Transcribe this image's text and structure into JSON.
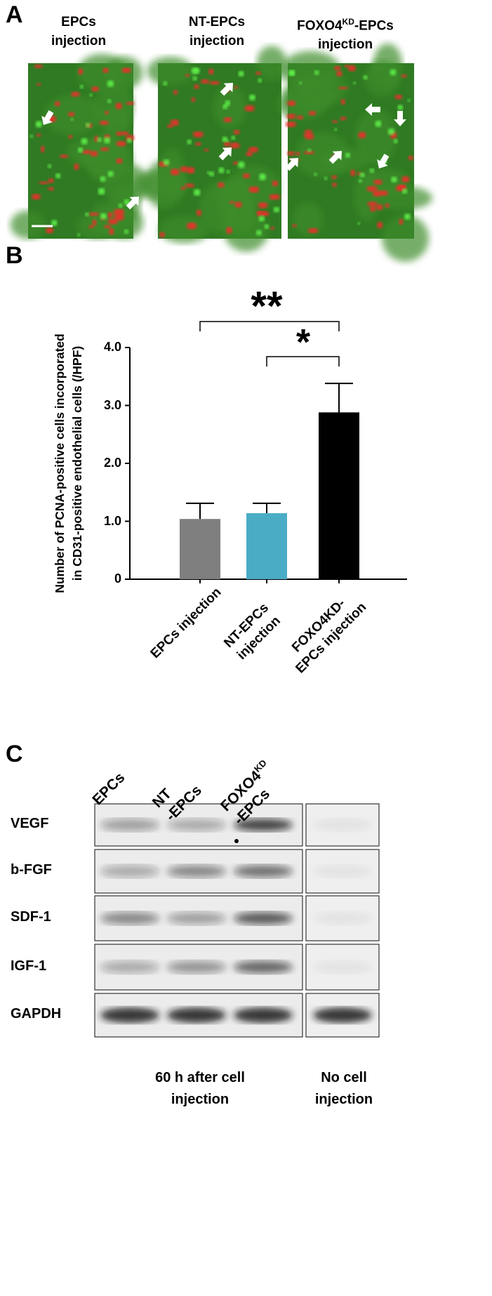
{
  "panel_a": {
    "label": "A",
    "columns": [
      {
        "name": "EPCs",
        "suffix": "injection"
      },
      {
        "name": "NT-EPCs",
        "suffix": "injection"
      },
      {
        "name": "FOXO4",
        "sup": "KD",
        "name_end": "-EPCs",
        "suffix": "injection"
      }
    ]
  },
  "chart_data": {
    "type": "bar",
    "label": "B",
    "y_label": [
      "Number of PCNA-positive cells incorporated",
      "in CD31-positive endothelial cells (/HPF)"
    ],
    "categories": [
      "EPCs injection",
      "NT-EPCs injection",
      "FOXO4KD-EPCs injection"
    ],
    "values": [
      1.04,
      1.14,
      2.88
    ],
    "errors": [
      0.27,
      0.17,
      0.5
    ],
    "colors": [
      "#7f7f7f",
      "#4bacc6",
      "#000000"
    ],
    "ylim": [
      0,
      4
    ],
    "yticks": [
      0,
      {
        "value": 1,
        "label": "1.0"
      },
      {
        "value": 2,
        "label": "2.0"
      },
      {
        "value": 3,
        "label": "3.0"
      },
      {
        "value": 4,
        "label": "4.0"
      }
    ],
    "annotations": [
      "**",
      "*"
    ]
  },
  "panel_c": {
    "label": "C",
    "lanes": [
      {
        "name": "EPCs"
      },
      {
        "name": "NT",
        "line2": "-EPCs"
      },
      {
        "name": "FOXO4",
        "sup": "KD",
        "line2": "-EPCs"
      }
    ],
    "rows": [
      "VEGF",
      "b-FGF",
      "SDF-1",
      "IGF-1",
      "GAPDH"
    ],
    "groups": [
      "60 h after cell injection",
      "No cell injection"
    ]
  }
}
